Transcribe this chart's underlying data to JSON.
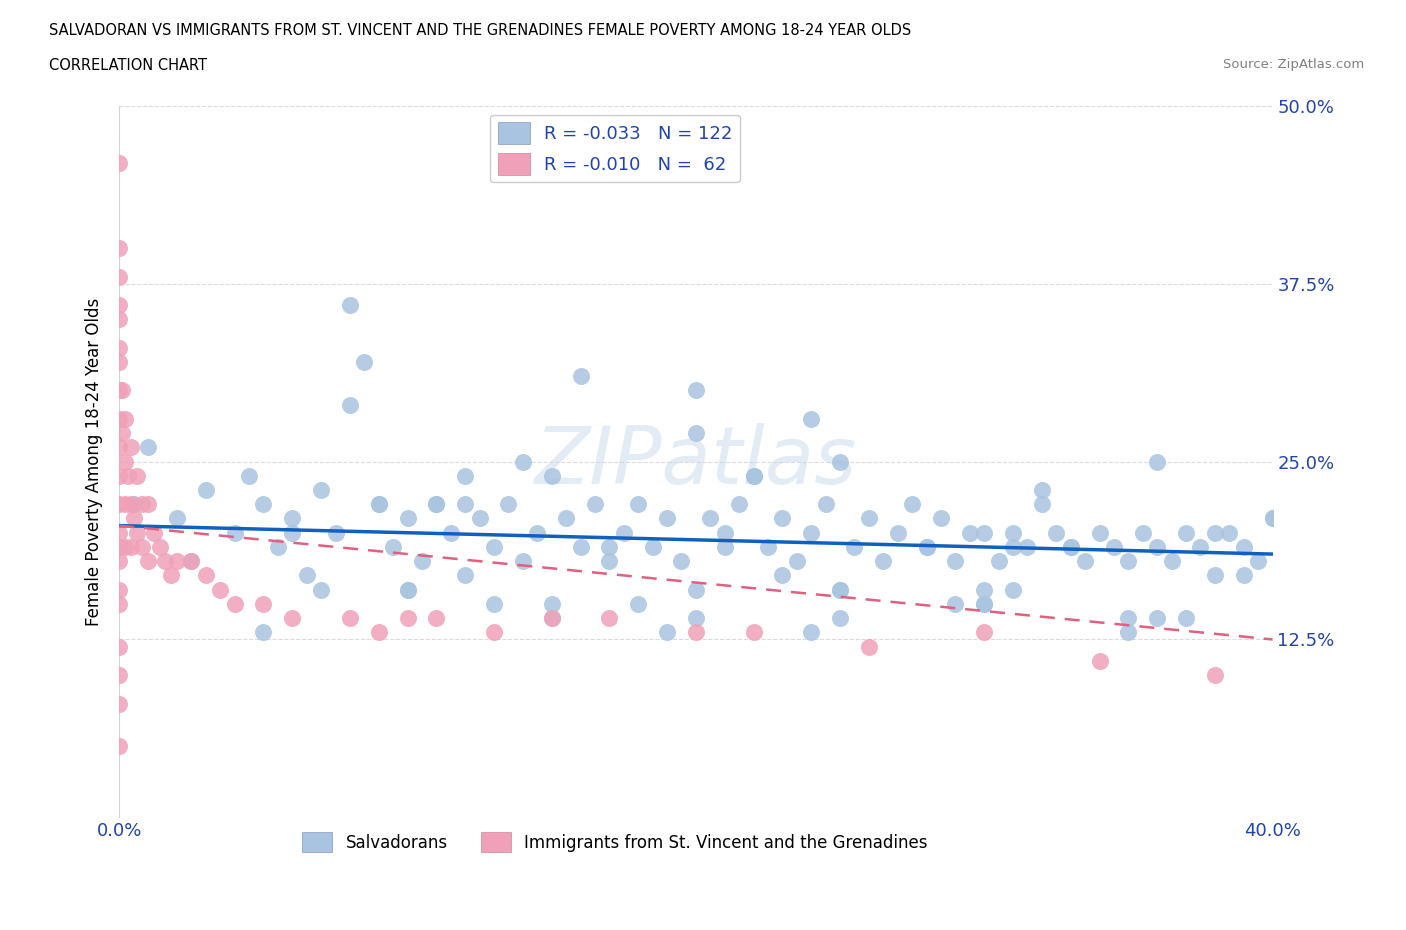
{
  "title_line1": "SALVADORAN VS IMMIGRANTS FROM ST. VINCENT AND THE GRENADINES FEMALE POVERTY AMONG 18-24 YEAR OLDS",
  "title_line2": "CORRELATION CHART",
  "source": "Source: ZipAtlas.com",
  "ylabel_label": "Female Poverty Among 18-24 Year Olds",
  "xlim": [
    0.0,
    0.4
  ],
  "ylim": [
    0.0,
    0.5
  ],
  "xtick_labels": [
    "0.0%",
    "",
    "",
    "",
    "",
    "",
    "",
    "",
    "40.0%"
  ],
  "ytick_labels": [
    "",
    "12.5%",
    "25.0%",
    "37.5%",
    "50.0%"
  ],
  "legend_text1": "R = -0.033   N = 122",
  "legend_text2": "R = -0.010   N =  62",
  "color_blue": "#A8C4E0",
  "color_pink": "#F0A0B8",
  "line_blue": "#1060C0",
  "line_pink": "#E06080",
  "watermark": "ZIPatlas",
  "blue_line_x": [
    0.0,
    0.4
  ],
  "blue_line_y": [
    0.205,
    0.185
  ],
  "pink_line_x": [
    0.0,
    0.4
  ],
  "pink_line_y": [
    0.205,
    0.125
  ],
  "blue_scatter_x": [
    0.005,
    0.01,
    0.02,
    0.025,
    0.03,
    0.04,
    0.045,
    0.05,
    0.055,
    0.06,
    0.065,
    0.07,
    0.075,
    0.08,
    0.085,
    0.09,
    0.095,
    0.1,
    0.105,
    0.11,
    0.115,
    0.12,
    0.125,
    0.13,
    0.135,
    0.14,
    0.145,
    0.15,
    0.155,
    0.16,
    0.165,
    0.17,
    0.175,
    0.18,
    0.185,
    0.19,
    0.195,
    0.2,
    0.205,
    0.21,
    0.215,
    0.22,
    0.225,
    0.23,
    0.235,
    0.24,
    0.245,
    0.25,
    0.255,
    0.26,
    0.265,
    0.27,
    0.275,
    0.28,
    0.285,
    0.29,
    0.295,
    0.3,
    0.305,
    0.31,
    0.315,
    0.32,
    0.325,
    0.33,
    0.335,
    0.34,
    0.345,
    0.35,
    0.355,
    0.36,
    0.365,
    0.37,
    0.375,
    0.38,
    0.385,
    0.39,
    0.395,
    0.4,
    0.08,
    0.12,
    0.16,
    0.2,
    0.24,
    0.28,
    0.32,
    0.36,
    0.1,
    0.15,
    0.2,
    0.25,
    0.3,
    0.35,
    0.4,
    0.05,
    0.1,
    0.15,
    0.2,
    0.25,
    0.3,
    0.35,
    0.07,
    0.13,
    0.19,
    0.25,
    0.31,
    0.37,
    0.06,
    0.12,
    0.18,
    0.24,
    0.3,
    0.36,
    0.09,
    0.17,
    0.23,
    0.29,
    0.33,
    0.39,
    0.11,
    0.21,
    0.31,
    0.14,
    0.22,
    0.38
  ],
  "blue_scatter_y": [
    0.22,
    0.26,
    0.21,
    0.18,
    0.23,
    0.2,
    0.24,
    0.22,
    0.19,
    0.21,
    0.17,
    0.23,
    0.2,
    0.36,
    0.32,
    0.22,
    0.19,
    0.21,
    0.18,
    0.22,
    0.2,
    0.24,
    0.21,
    0.19,
    0.22,
    0.18,
    0.2,
    0.24,
    0.21,
    0.19,
    0.22,
    0.18,
    0.2,
    0.22,
    0.19,
    0.21,
    0.18,
    0.27,
    0.21,
    0.19,
    0.22,
    0.24,
    0.19,
    0.21,
    0.18,
    0.2,
    0.22,
    0.25,
    0.19,
    0.21,
    0.18,
    0.2,
    0.22,
    0.19,
    0.21,
    0.18,
    0.2,
    0.2,
    0.18,
    0.2,
    0.19,
    0.22,
    0.2,
    0.19,
    0.18,
    0.2,
    0.19,
    0.18,
    0.2,
    0.19,
    0.18,
    0.2,
    0.19,
    0.17,
    0.2,
    0.19,
    0.18,
    0.21,
    0.29,
    0.22,
    0.31,
    0.3,
    0.28,
    0.19,
    0.23,
    0.25,
    0.16,
    0.15,
    0.14,
    0.16,
    0.15,
    0.13,
    0.21,
    0.13,
    0.16,
    0.14,
    0.16,
    0.14,
    0.16,
    0.14,
    0.16,
    0.15,
    0.13,
    0.16,
    0.16,
    0.14,
    0.2,
    0.17,
    0.15,
    0.13,
    0.15,
    0.14,
    0.22,
    0.19,
    0.17,
    0.15,
    0.19,
    0.17,
    0.22,
    0.2,
    0.19,
    0.25,
    0.24,
    0.2
  ],
  "pink_scatter_x": [
    0.0,
    0.0,
    0.0,
    0.0,
    0.0,
    0.0,
    0.0,
    0.0,
    0.0,
    0.0,
    0.0,
    0.0,
    0.0,
    0.0,
    0.0,
    0.0,
    0.0,
    0.0,
    0.002,
    0.002,
    0.002,
    0.002,
    0.004,
    0.004,
    0.004,
    0.006,
    0.006,
    0.008,
    0.008,
    0.01,
    0.01,
    0.012,
    0.014,
    0.016,
    0.018,
    0.02,
    0.025,
    0.03,
    0.035,
    0.04,
    0.05,
    0.06,
    0.08,
    0.09,
    0.1,
    0.11,
    0.13,
    0.15,
    0.17,
    0.2,
    0.22,
    0.26,
    0.3,
    0.34,
    0.38,
    0.0,
    0.0,
    0.0,
    0.001,
    0.001,
    0.003,
    0.005
  ],
  "pink_scatter_y": [
    0.46,
    0.4,
    0.36,
    0.33,
    0.3,
    0.28,
    0.26,
    0.24,
    0.22,
    0.2,
    0.19,
    0.18,
    0.16,
    0.15,
    0.12,
    0.1,
    0.08,
    0.05,
    0.28,
    0.25,
    0.22,
    0.19,
    0.26,
    0.22,
    0.19,
    0.24,
    0.2,
    0.22,
    0.19,
    0.22,
    0.18,
    0.2,
    0.19,
    0.18,
    0.17,
    0.18,
    0.18,
    0.17,
    0.16,
    0.15,
    0.15,
    0.14,
    0.14,
    0.13,
    0.14,
    0.14,
    0.13,
    0.14,
    0.14,
    0.13,
    0.13,
    0.12,
    0.13,
    0.11,
    0.1,
    0.32,
    0.35,
    0.38,
    0.3,
    0.27,
    0.24,
    0.21
  ]
}
